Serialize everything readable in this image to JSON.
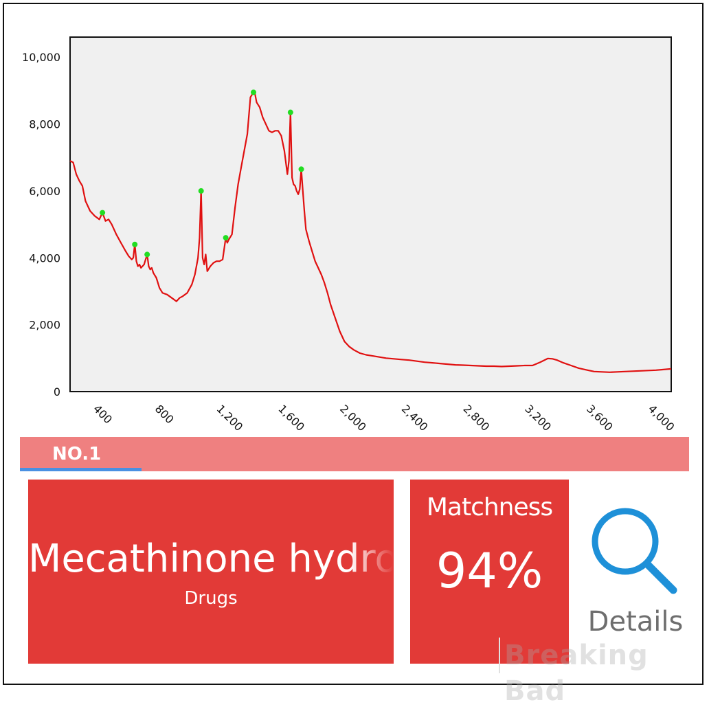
{
  "chart_data": {
    "type": "line",
    "xlim": [
      200,
      4100
    ],
    "ylim": [
      0,
      10600
    ],
    "x_ticks": [
      400,
      800,
      1200,
      1600,
      2000,
      2400,
      2800,
      3200,
      3600,
      4000
    ],
    "x_tick_labels": [
      "400",
      "800",
      "1,200",
      "1,600",
      "2,000",
      "2,400",
      "2,800",
      "3,200",
      "3,600",
      "4,000"
    ],
    "y_ticks": [
      0,
      2000,
      4000,
      6000,
      8000,
      10000
    ],
    "y_tick_labels": [
      "0",
      "2,000",
      "4,000",
      "6,000",
      "8,000",
      "10,000"
    ],
    "grid": false,
    "title": "",
    "xlabel": "",
    "ylabel": "",
    "background": "#f0f0f0",
    "line_color": "#e01010",
    "peak_color": "#22dd22",
    "series": [
      {
        "x": [
          200,
          220,
          240,
          260,
          280,
          300,
          330,
          360,
          390,
          410,
          430,
          450,
          470,
          500,
          530,
          560,
          580,
          600,
          610,
          620,
          630,
          640,
          650,
          660,
          680,
          700,
          710,
          720,
          730,
          740,
          760,
          780,
          800,
          830,
          860,
          890,
          910,
          930,
          960,
          990,
          1010,
          1030,
          1040,
          1050,
          1060,
          1070,
          1080,
          1090,
          1110,
          1130,
          1150,
          1170,
          1190,
          1210,
          1220,
          1230,
          1250,
          1270,
          1290,
          1310,
          1330,
          1350,
          1370,
          1390,
          1400,
          1410,
          1430,
          1450,
          1470,
          1490,
          1510,
          1530,
          1550,
          1570,
          1590,
          1610,
          1620,
          1630,
          1640,
          1650,
          1660,
          1670,
          1680,
          1690,
          1700,
          1710,
          1720,
          1730,
          1750,
          1770,
          1790,
          1810,
          1830,
          1850,
          1870,
          1890,
          1920,
          1950,
          1980,
          2010,
          2040,
          2080,
          2120,
          2160,
          2200,
          2250,
          2300,
          2350,
          2400,
          2450,
          2500,
          2550,
          2600,
          2650,
          2700,
          2750,
          2800,
          2850,
          2900,
          2950,
          3000,
          3050,
          3100,
          3150,
          3200,
          3250,
          3300,
          3330,
          3360,
          3400,
          3450,
          3500,
          3550,
          3600,
          3650,
          3700,
          3750,
          3800,
          3850,
          3900,
          3950,
          4000,
          4050,
          4100
        ],
        "y": [
          6900,
          6850,
          6500,
          6300,
          6150,
          5700,
          5400,
          5250,
          5150,
          5350,
          5100,
          5150,
          5000,
          4700,
          4450,
          4200,
          4050,
          3950,
          4000,
          4400,
          3900,
          3750,
          3800,
          3700,
          3800,
          4100,
          3750,
          3650,
          3700,
          3550,
          3400,
          3100,
          2950,
          2900,
          2800,
          2700,
          2800,
          2850,
          2950,
          3200,
          3500,
          4000,
          4600,
          6000,
          4000,
          3800,
          4100,
          3600,
          3750,
          3850,
          3900,
          3900,
          3950,
          4600,
          4450,
          4550,
          4700,
          5500,
          6200,
          6700,
          7200,
          7700,
          8800,
          8950,
          8900,
          8650,
          8500,
          8200,
          8000,
          7800,
          7750,
          7800,
          7800,
          7650,
          7200,
          6500,
          6900,
          8350,
          6400,
          6200,
          6150,
          6000,
          5900,
          6050,
          6650,
          6000,
          5400,
          4850,
          4500,
          4200,
          3900,
          3700,
          3500,
          3250,
          2950,
          2600,
          2200,
          1800,
          1500,
          1350,
          1250,
          1150,
          1100,
          1070,
          1040,
          1000,
          980,
          960,
          940,
          910,
          880,
          860,
          840,
          820,
          800,
          790,
          780,
          770,
          760,
          760,
          750,
          760,
          770,
          780,
          780,
          880,
          990,
          980,
          940,
          860,
          780,
          700,
          650,
          600,
          590,
          580,
          590,
          600,
          610,
          620,
          630,
          640,
          660,
          680
        ],
        "peaks": [
          {
            "x": 410,
            "y": 5350
          },
          {
            "x": 620,
            "y": 4400
          },
          {
            "x": 700,
            "y": 4100
          },
          {
            "x": 1050,
            "y": 6000
          },
          {
            "x": 1210,
            "y": 4600
          },
          {
            "x": 1390,
            "y": 8950
          },
          {
            "x": 1630,
            "y": 8350
          },
          {
            "x": 1700,
            "y": 6650
          }
        ]
      }
    ]
  },
  "tab": {
    "label": "NO.1"
  },
  "result": {
    "name": "Mecathinone hydrochloride",
    "category": "Drugs",
    "match_label": "Matchness",
    "match_value": "94%",
    "details_label": "Details",
    "card_color": "#e23a37",
    "icon": "search-icon"
  },
  "watermark": "Breaking Bad"
}
